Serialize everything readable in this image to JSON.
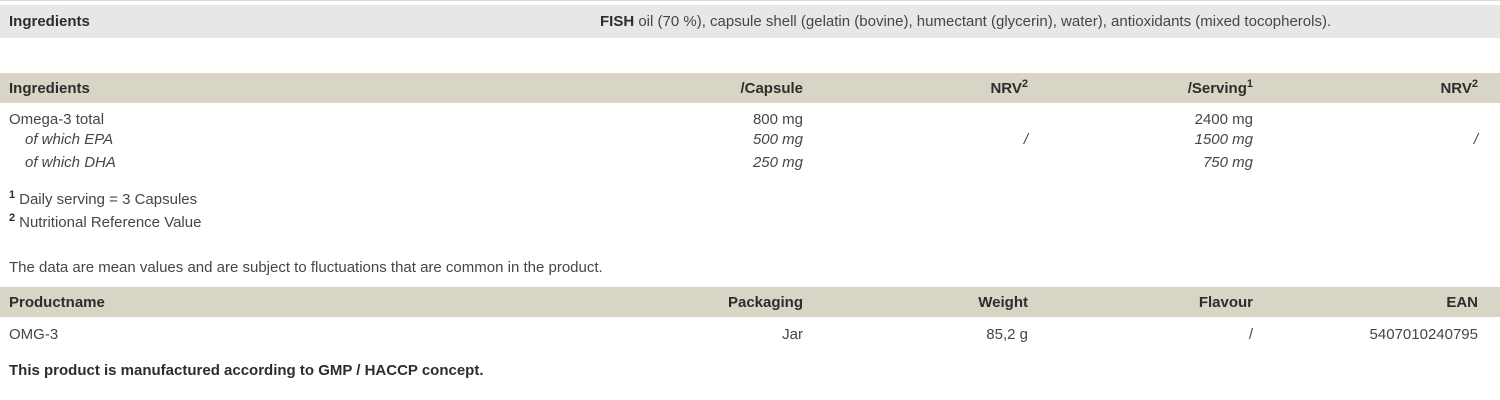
{
  "colors": {
    "bar_gray": "#e7e7e7",
    "header_beige": "#d8d4c6",
    "heading_text": "#2d2d2d",
    "body_text": "#464646"
  },
  "ingredients_bar": {
    "label": "Ingredients",
    "value_bold": "FISH",
    "value_rest": " oil (70 %), capsule shell (gelatin (bovine), humectant (glycerin), water), antioxidants (mixed tocopherols)."
  },
  "nutrition_table": {
    "col_headers": {
      "ingredients": "Ingredients",
      "capsule": "/Capsule",
      "nrv_capsule": "NRV",
      "nrv_capsule_sup": "2",
      "serving": "/Serving",
      "serving_sup": "1",
      "nrv_serving": "NRV",
      "nrv_serving_sup": "2"
    },
    "rows": [
      {
        "name": "Omega-3 total",
        "capsule": "800 mg",
        "nrv_capsule": "",
        "serving": "2400 mg",
        "nrv_serving": ""
      },
      {
        "name": "of which EPA",
        "capsule": "500 mg",
        "nrv_capsule": "/",
        "serving": "1500 mg",
        "nrv_serving": "/"
      },
      {
        "name": "of which DHA",
        "capsule": "250 mg",
        "nrv_capsule": "",
        "serving": "750 mg",
        "nrv_serving": ""
      }
    ],
    "footnotes": [
      {
        "marker": "1",
        "text": "Daily serving = 3 Capsules"
      },
      {
        "marker": "2",
        "text": "Nutritional Reference Value"
      }
    ]
  },
  "disclaimer": "The data are mean values and are subject to fluctuations that are common in the product.",
  "product_table": {
    "col_headers": {
      "productname": "Productname",
      "packaging": "Packaging",
      "weight": "Weight",
      "flavour": "Flavour",
      "ean": "EAN"
    },
    "rows": [
      {
        "productname": "OMG-3",
        "packaging": "Jar",
        "weight": "85,2 g",
        "flavour": "/",
        "ean": "5407010240795"
      }
    ]
  },
  "footer": "This product is manufactured according to GMP / HACCP concept."
}
